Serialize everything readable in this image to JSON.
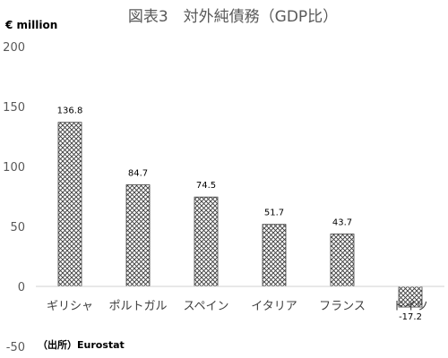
{
  "chart_data": {
    "type": "bar",
    "title": "図表3　対外純債務（GDP比）",
    "unit_label": "€ million",
    "categories": [
      "ギリシャ",
      "ポルトガル",
      "スペイン",
      "イタリア",
      "フランス",
      "ドイツ"
    ],
    "values": [
      136.8,
      84.7,
      74.5,
      51.7,
      43.7,
      -17.2
    ],
    "value_labels": [
      "136.8",
      "84.7",
      "74.5",
      "51.7",
      "43.7",
      "-17.2"
    ],
    "ylim": [
      -50,
      200
    ],
    "yticks": [
      -50,
      0,
      50,
      100,
      150,
      200
    ],
    "ytick_labels": [
      "-50",
      "0",
      "50",
      "100",
      "150",
      "200"
    ],
    "grid": false,
    "legend": "none",
    "bar_pattern": "crosshatch",
    "bar_color": "#404040",
    "source_note": "（出所）Eurostat"
  }
}
